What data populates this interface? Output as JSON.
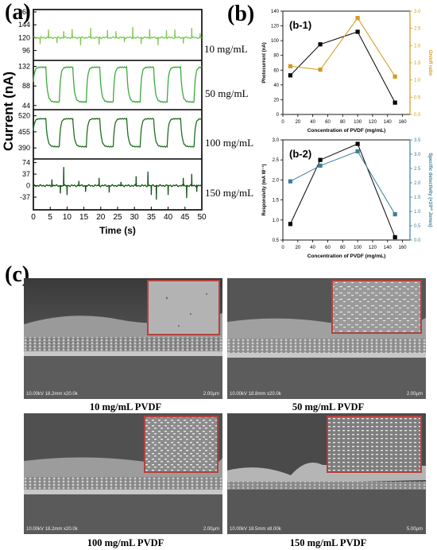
{
  "panel_labels": {
    "a": "(a)",
    "b": "(b)",
    "c": "(c)"
  },
  "colors": {
    "light_green": "#7ec850",
    "mid_green": "#3caa3c",
    "dark_green": "#1f6e1f",
    "darkest_green": "#135213",
    "orange": "#d39a1e",
    "teal": "#3d7f96"
  },
  "chart_data": [
    {
      "id": "a",
      "type": "line",
      "xlabel": "Time (s)",
      "ylabel": "Current (nA)",
      "x_ticks": [
        "0",
        "5",
        "10",
        "15",
        "20",
        "25",
        "30",
        "35",
        "40",
        "45",
        "50"
      ],
      "xlim": [
        0,
        50
      ],
      "panels": [
        {
          "label": "10 mg/mL",
          "y_ticks": [
            "168",
            "144",
            "120",
            "96"
          ],
          "ylim": [
            82,
            168
          ],
          "color_key": "light_green",
          "baseline": 120,
          "spikes": [
            [
              2,
              -12
            ],
            [
              4.5,
              15
            ],
            [
              7,
              -10
            ],
            [
              9,
              12
            ],
            [
              11.5,
              16
            ],
            [
              14,
              -14
            ],
            [
              17,
              18
            ],
            [
              19.5,
              -13
            ],
            [
              22,
              14
            ],
            [
              24.5,
              12
            ],
            [
              27,
              -8
            ],
            [
              29.5,
              20
            ],
            [
              32,
              -12
            ],
            [
              34.5,
              16
            ],
            [
              37,
              -14
            ],
            [
              39.5,
              14
            ],
            [
              42,
              15
            ],
            [
              44.5,
              -11
            ],
            [
              47,
              18
            ],
            [
              49.5,
              8
            ]
          ]
        },
        {
          "label": "50 mg/mL",
          "y_ticks": [
            "132",
            "88",
            "44"
          ],
          "ylim": [
            40,
            140
          ],
          "color_key": "mid_green",
          "on": 130,
          "off": 52,
          "period": 8,
          "phase": 0.3,
          "duty": 0.5
        },
        {
          "label": "100 mg/mL",
          "y_ticks": [
            "520",
            "455",
            "390"
          ],
          "ylim": [
            355,
            535
          ],
          "color_key": "dark_green",
          "on": 508,
          "off": 395,
          "period": 8,
          "phase": 0.3,
          "duty": 0.5
        },
        {
          "label": "150 mg/mL",
          "y_ticks": [
            "74",
            "37",
            "0",
            "-37"
          ],
          "ylim": [
            -70,
            78
          ],
          "color_key": "darkest_green",
          "baseline": 0,
          "spikes": [
            [
              5.5,
              20
            ],
            [
              8,
              -25
            ],
            [
              9,
              60
            ],
            [
              10,
              -30
            ],
            [
              13.5,
              15
            ],
            [
              15.5,
              -20
            ],
            [
              19.5,
              25
            ],
            [
              22.5,
              -22
            ],
            [
              26,
              12
            ],
            [
              30.5,
              30
            ],
            [
              34,
              45
            ],
            [
              35,
              -30
            ],
            [
              36.5,
              -45
            ],
            [
              40,
              -30
            ],
            [
              44.5,
              25
            ],
            [
              45.5,
              -40
            ],
            [
              47,
              38
            ],
            [
              48.5,
              -20
            ]
          ]
        }
      ]
    },
    {
      "id": "b-1",
      "type": "line",
      "title": "(b-1)",
      "xlabel": "Concentration of PVDF (mg/mL)",
      "ylabel": "Photocurrent (nA)",
      "y2label": "On/off ratio",
      "x": [
        10,
        50,
        100,
        150
      ],
      "xlim": [
        0,
        170
      ],
      "x_ticks": [
        "0",
        "20",
        "40",
        "60",
        "80",
        "100",
        "120",
        "140",
        "160"
      ],
      "ylim": [
        0,
        140
      ],
      "y_ticks": [
        "0",
        "20",
        "40",
        "60",
        "80",
        "100",
        "120",
        "140"
      ],
      "y2lim": [
        0,
        3.0
      ],
      "y2_ticks": [
        "0.0",
        "0.5",
        "1.0",
        "1.5",
        "2.0",
        "2.5",
        "3.0"
      ],
      "series": [
        {
          "axis": "left",
          "color_key": "darkest_black",
          "values": [
            53,
            95,
            112,
            16
          ]
        },
        {
          "axis": "right",
          "color_key": "orange",
          "values": [
            1.4,
            1.3,
            2.8,
            1.1
          ]
        }
      ]
    },
    {
      "id": "b-2",
      "type": "line",
      "title": "(b-2)",
      "xlabel": "Concentration of PVDF (mg/mL)",
      "ylabel": "Responsivity (mA W⁻¹)",
      "y2label": "Specific detectivity (×10¹⁰ Jones)",
      "x": [
        10,
        50,
        100,
        150
      ],
      "xlim": [
        0,
        170
      ],
      "x_ticks": [
        "0",
        "20",
        "40",
        "60",
        "80",
        "100",
        "120",
        "140",
        "160"
      ],
      "ylim": [
        0.5,
        3.0
      ],
      "y_ticks": [
        "0.5",
        "1.0",
        "1.5",
        "2.0",
        "2.5",
        "3.0"
      ],
      "y2lim": [
        0.0,
        3.5
      ],
      "y2_ticks": [
        "0.0",
        "0.5",
        "1.0",
        "1.5",
        "2.0",
        "2.5",
        "3.0",
        "3.5"
      ],
      "series": [
        {
          "axis": "left",
          "color_key": "black",
          "values": [
            0.9,
            2.5,
            2.9,
            0.57
          ]
        },
        {
          "axis": "right",
          "color_key": "teal",
          "values": [
            2.05,
            2.6,
            3.1,
            0.9
          ]
        }
      ]
    }
  ],
  "sem": [
    {
      "caption": "10 mg/mL PVDF",
      "meta": "10.00kV 18.2mm x20.0k",
      "scale": "2.00μm"
    },
    {
      "caption": "50 mg/mL PVDF",
      "meta": "10.00kV 18.8mm x20.0k",
      "scale": "2.00μm"
    },
    {
      "caption": "100 mg/mL PVDF",
      "meta": "10.00kV 18.2mm x20.0k",
      "scale": "2.00μm"
    },
    {
      "caption": "150 mg/mL PVDF",
      "meta": "10.00kV 18.5mm x8.00k",
      "scale": "5.00μm"
    }
  ]
}
